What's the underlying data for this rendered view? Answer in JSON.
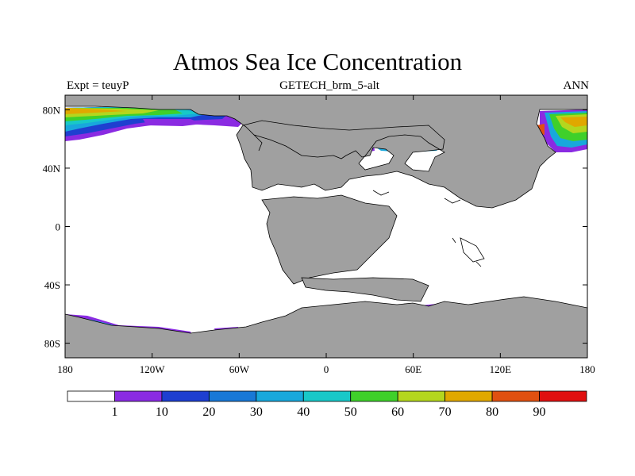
{
  "title": "Atmos Sea Ice Concentration",
  "left_label": "Expt = teuyP",
  "center_label": "GETECH_brm_5-alt",
  "right_label": "ANN",
  "map": {
    "projection": "cylindrical equidistant",
    "lon_range": [
      -180,
      180
    ],
    "lat_range": [
      -90,
      90
    ],
    "land_color": "#a0a0a0",
    "ocean_color": "#ffffff",
    "x_ticks": [
      {
        "value": -180,
        "label": "180"
      },
      {
        "value": -120,
        "label": "120W"
      },
      {
        "value": -60,
        "label": "60W"
      },
      {
        "value": 0,
        "label": "0"
      },
      {
        "value": 60,
        "label": "60E"
      },
      {
        "value": 120,
        "label": "120E"
      },
      {
        "value": 180,
        "label": "180"
      }
    ],
    "y_ticks": [
      {
        "value": 80,
        "label": "80N"
      },
      {
        "value": 40,
        "label": "40N"
      },
      {
        "value": 0,
        "label": "0"
      },
      {
        "value": -40,
        "label": "40S"
      },
      {
        "value": -80,
        "label": "80S"
      }
    ]
  },
  "colorbar": {
    "colors": [
      "#ffffff",
      "#8a2be2",
      "#1e3fd0",
      "#1878d6",
      "#18a8dc",
      "#18c8c8",
      "#3fd02a",
      "#b4d61e",
      "#e0a800",
      "#e05010",
      "#e01010"
    ],
    "labels": [
      "1",
      "10",
      "20",
      "30",
      "40",
      "50",
      "60",
      "70",
      "80",
      "90"
    ]
  }
}
